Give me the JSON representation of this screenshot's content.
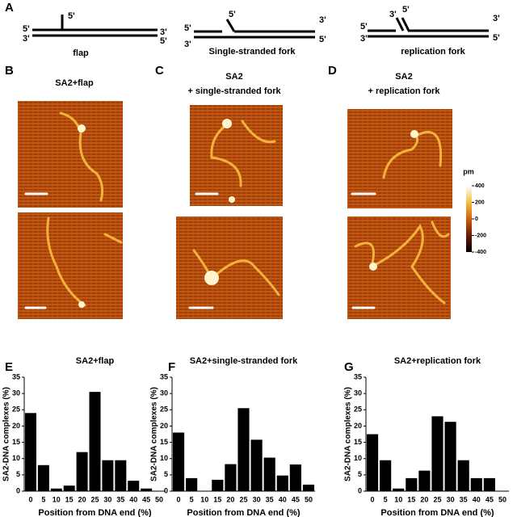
{
  "panels": {
    "a": "A",
    "b": "B",
    "c": "C",
    "d": "D",
    "e": "E",
    "f": "F",
    "g": "G"
  },
  "diagrams": [
    {
      "title": "flap",
      "labels": [
        "5'",
        "3'",
        "5'",
        "3'",
        "5'"
      ]
    },
    {
      "title": "Single-stranded fork",
      "labels": [
        "5'",
        "3'",
        "5'",
        "3'",
        "5'"
      ]
    },
    {
      "title": "replication fork",
      "labels": [
        "5'",
        "3'",
        "3'",
        "5'",
        "3'",
        "5'"
      ]
    }
  ],
  "images": [
    {
      "title": [
        "SA2+flap"
      ]
    },
    {
      "title": [
        "SA2",
        "+ single-stranded fork"
      ]
    },
    {
      "title": [
        "SA2",
        "+ replication fork"
      ]
    }
  ],
  "colorbar": {
    "unit": "pm",
    "lim": [
      -400,
      400
    ],
    "ticks": [
      400,
      200,
      0,
      -200,
      -400
    ]
  },
  "chart_data": [
    {
      "type": "bar",
      "title": "SA2+flap",
      "categories": [
        0,
        5,
        10,
        15,
        20,
        25,
        30,
        35,
        40,
        45,
        50
      ],
      "values": [
        24,
        8,
        0.8,
        1.7,
        12,
        30.5,
        9.5,
        9.5,
        3.2,
        0.8,
        0
      ],
      "color": "#000000",
      "ylim": [
        0,
        35
      ],
      "yticks": [
        0,
        5,
        10,
        15,
        20,
        25,
        30,
        35
      ],
      "y_label": "SA2-DNA complexes (%)",
      "x_label": "Position  from DNA end (%)"
    },
    {
      "type": "bar",
      "title": "SA2+single-stranded fork",
      "categories": [
        0,
        5,
        10,
        15,
        20,
        25,
        30,
        35,
        40,
        45,
        50
      ],
      "values": [
        18,
        4,
        0,
        3.5,
        8.3,
        25.5,
        15.8,
        10.3,
        4.8,
        8.2,
        2
      ],
      "color": "#000000",
      "ylim": [
        0,
        35
      ],
      "yticks": [
        0,
        5,
        10,
        15,
        20,
        25,
        30,
        35
      ],
      "y_label": "SA2-DNA complexes (%)",
      "x_label": "Position  from DNA end (%)"
    },
    {
      "type": "bar",
      "title": "SA2+replication fork",
      "categories": [
        0,
        5,
        10,
        15,
        20,
        25,
        30,
        35,
        40,
        45,
        50
      ],
      "values": [
        17.5,
        9.5,
        0.8,
        4,
        6.3,
        23,
        21.3,
        9.5,
        4,
        4,
        0
      ],
      "color": "#000000",
      "ylim": [
        0,
        35
      ],
      "yticks": [
        0,
        5,
        10,
        15,
        20,
        25,
        30,
        35
      ],
      "y_label": "SA2-DNA complexes (%)",
      "x_label": "Position  from DNA end (%)"
    }
  ]
}
